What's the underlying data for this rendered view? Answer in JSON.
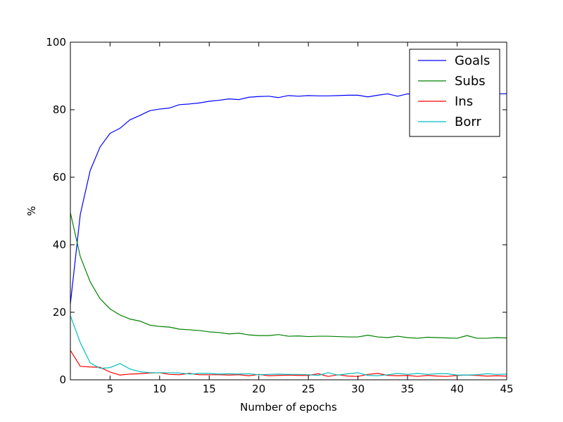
{
  "chart_data": {
    "type": "line",
    "title": "",
    "xlabel": "Number of epochs",
    "ylabel": "%",
    "xlim": [
      1,
      45
    ],
    "ylim": [
      0,
      100
    ],
    "xticks": [
      5,
      10,
      15,
      20,
      25,
      30,
      35,
      40,
      45
    ],
    "yticks": [
      0,
      20,
      40,
      60,
      80,
      100
    ],
    "grid": false,
    "legend_position": "top-right",
    "x": [
      1,
      2,
      3,
      4,
      5,
      6,
      7,
      8,
      9,
      10,
      11,
      12,
      13,
      14,
      15,
      16,
      17,
      18,
      19,
      20,
      21,
      22,
      23,
      24,
      25,
      26,
      27,
      28,
      29,
      30,
      31,
      32,
      33,
      34,
      35,
      36,
      37,
      38,
      39,
      40,
      41,
      42,
      43,
      44,
      45
    ],
    "series": [
      {
        "name": "Goals",
        "color": "#0000ff",
        "values": [
          22.5,
          49,
          62,
          69,
          73,
          74.5,
          77,
          78.3,
          79.7,
          80.2,
          80.5,
          81.5,
          81.7,
          82,
          82.5,
          82.8,
          83.2,
          83,
          83.7,
          83.9,
          84,
          83.6,
          84.2,
          84,
          84.2,
          84.1,
          84.1,
          84.2,
          84.3,
          84.3,
          83.8,
          84.3,
          84.7,
          84,
          84.7,
          84.5,
          84.6,
          84.7,
          84.6,
          84.7,
          84.7,
          84.6,
          84.7,
          84.7,
          84.7
        ]
      },
      {
        "name": "Subs",
        "color": "#008000",
        "values": [
          49.5,
          36.5,
          29,
          24,
          21,
          19.2,
          18,
          17.4,
          16.2,
          15.8,
          15.6,
          15,
          14.8,
          14.6,
          14.2,
          14,
          13.6,
          13.8,
          13.3,
          13.1,
          13.1,
          13.4,
          12.9,
          13,
          12.8,
          12.9,
          12.9,
          12.8,
          12.7,
          12.7,
          13.2,
          12.7,
          12.5,
          12.9,
          12.5,
          12.3,
          12.6,
          12.5,
          12.4,
          12.3,
          13.1,
          12.3,
          12.3,
          12.5,
          12.4
        ]
      },
      {
        "name": "Ins",
        "color": "#ff0000",
        "values": [
          8.7,
          4,
          3.8,
          3.7,
          2.3,
          1.4,
          1.7,
          1.8,
          2,
          2.1,
          1.6,
          1.5,
          1.9,
          1.5,
          1.5,
          1.5,
          1.4,
          1.5,
          1.2,
          1.6,
          1.2,
          1.3,
          1.4,
          1.3,
          1.3,
          1.8,
          1,
          1.5,
          1.1,
          1,
          1.6,
          1.9,
          1.3,
          1.2,
          1.3,
          1,
          1.3,
          1.1,
          1,
          1.3,
          1.4,
          1.3,
          1.1,
          1.2,
          1.1
        ]
      },
      {
        "name": "Borr",
        "color": "#00bfbf",
        "values": [
          19,
          11,
          5,
          3.4,
          3.6,
          4.8,
          3.2,
          2.4,
          2.1,
          2.1,
          2.1,
          2,
          1.7,
          1.9,
          1.9,
          1.7,
          1.8,
          1.7,
          1.8,
          1.5,
          1.6,
          1.7,
          1.6,
          1.6,
          1.5,
          1.3,
          2.1,
          1.4,
          1.8,
          2.1,
          1.3,
          1.2,
          1.5,
          1.9,
          1.6,
          1.9,
          1.6,
          1.8,
          1.8,
          1.4,
          1.4,
          1.5,
          1.8,
          1.6,
          1.7
        ]
      }
    ]
  }
}
